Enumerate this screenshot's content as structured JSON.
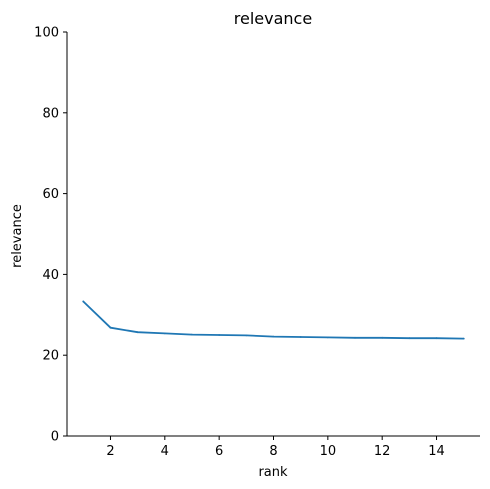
{
  "chart_data": {
    "type": "line",
    "title": "relevance",
    "xlabel": "rank",
    "ylabel": "relevance",
    "xlim": [
      0.4,
      15.6
    ],
    "ylim": [
      0,
      100
    ],
    "xticks": [
      "2",
      "4",
      "6",
      "8",
      "10",
      "12",
      "14"
    ],
    "yticks": [
      "0",
      "20",
      "40",
      "60",
      "80",
      "100"
    ],
    "grid": false,
    "spines": "left-bottom",
    "line_color": "#1f77b4",
    "series": [
      {
        "x": [
          1,
          2,
          3,
          4,
          5,
          6,
          7,
          8,
          9,
          10,
          11,
          12,
          13,
          14,
          15
        ],
        "values": [
          33.3,
          26.8,
          25.7,
          25.4,
          25.1,
          25.0,
          24.9,
          24.6,
          24.5,
          24.4,
          24.3,
          24.3,
          24.2,
          24.2,
          24.1
        ]
      }
    ]
  }
}
